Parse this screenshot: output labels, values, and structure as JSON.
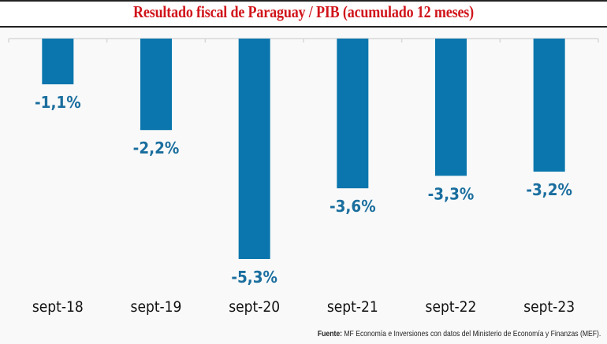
{
  "chart_data": {
    "type": "bar",
    "title": "Resultado fiscal de Paraguay / PIB (acumulado 12 meses)",
    "xlabel": "",
    "ylabel": "",
    "categories": [
      "sept-18",
      "sept-19",
      "sept-20",
      "sept-21",
      "sept-22",
      "sept-23"
    ],
    "values": [
      -1.1,
      -2.2,
      -5.3,
      -3.6,
      -3.3,
      -3.2
    ],
    "data_labels": [
      "-1,1%",
      "-2,2%",
      "-5,3%",
      "-3,6%",
      "-3,3%",
      "-3,2%"
    ],
    "ylim": [
      -5.3,
      0
    ],
    "grid": false,
    "legend": "none",
    "bar_color": "#0a76ad",
    "label_color": "#1a6e9e"
  },
  "source": {
    "prefix": "Fuente:",
    "text": " MF Economía e Inversiones con datos del Ministerio de Economía y Finanzas (MEF)."
  }
}
